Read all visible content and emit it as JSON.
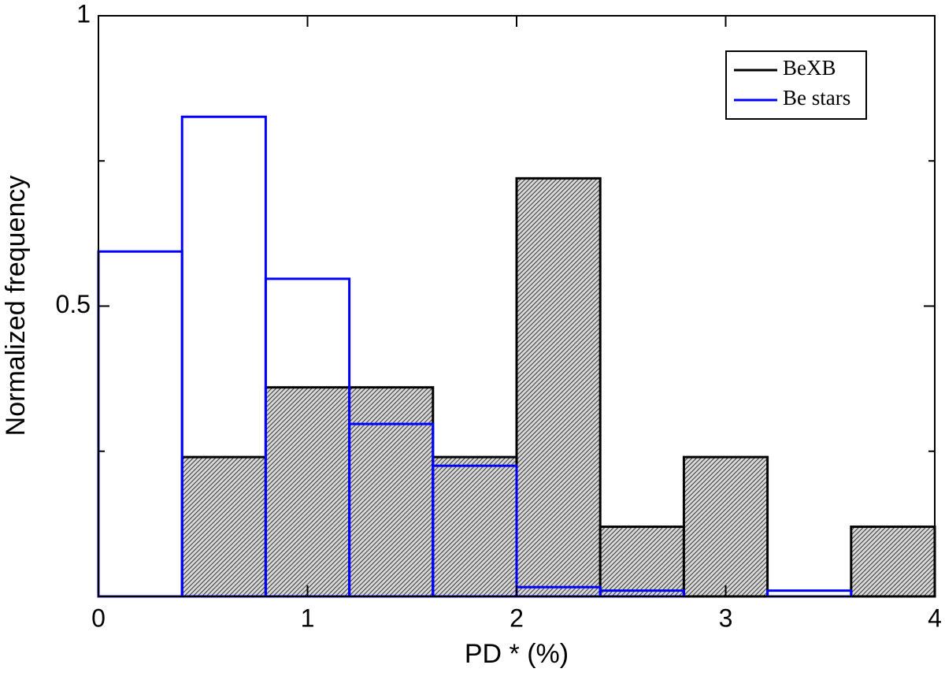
{
  "chart_data": {
    "type": "histogram",
    "xlabel": "PD * (%)",
    "ylabel": "Normalized frequency",
    "bins": [
      0,
      0.4,
      0.8,
      1.2,
      1.6,
      2.0,
      2.4,
      2.8,
      3.2,
      3.6,
      4.0
    ],
    "series": [
      {
        "name": "BeXB",
        "color": "#000000",
        "hatched": true,
        "values": [
          0,
          0.24,
          0.36,
          0.36,
          0.24,
          0.72,
          0.12,
          0.24,
          0,
          0.12
        ]
      },
      {
        "name": "Be stars",
        "color": "#0000ff",
        "hatched": false,
        "values": [
          0.594,
          0.826,
          0.547,
          0.297,
          0.225,
          0.016,
          0.01,
          0,
          0.01,
          0
        ]
      }
    ],
    "xlim": [
      0,
      4
    ],
    "xticks": [
      0,
      1,
      2,
      3,
      4
    ],
    "ylim": [
      0,
      1
    ],
    "yticks": [
      0.5,
      1
    ],
    "yminorticks": [
      0.25,
      0.75
    ],
    "legend": "upper right"
  }
}
